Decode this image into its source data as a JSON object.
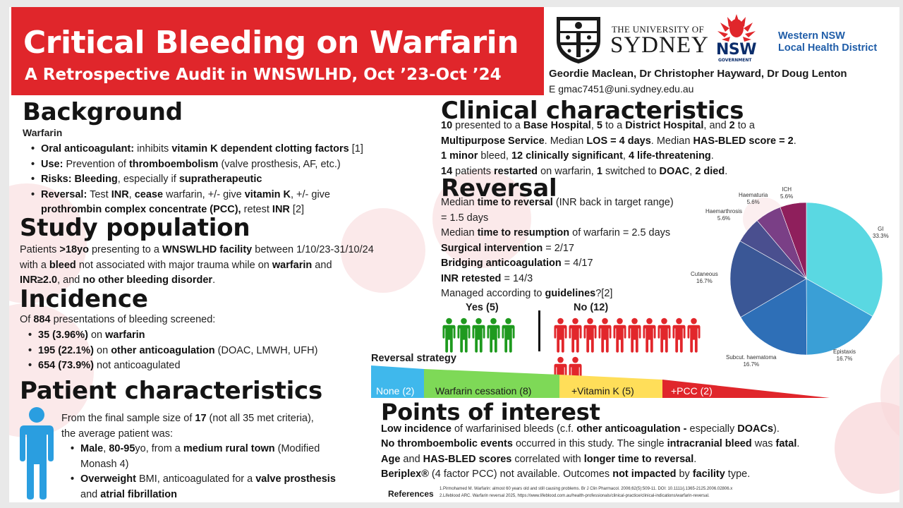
{
  "header": {
    "title": "Critical Bleeding on Warfarin",
    "subtitle": "A Retrospective Audit in WNSWLHD, Oct ’23-Oct ’24",
    "authors": "Geordie Maclean, Dr Christopher Hayward, Dr Doug Lenton",
    "email": "E gmac7451@uni.sydney.edu.au"
  },
  "logos": {
    "usyd_line1": "THE UNIVERSITY OF",
    "usyd_line2": "SYDNEY",
    "nsw_text": "NSW",
    "nsw_sub": "GOVERNMENT",
    "lhd_line1": "Western NSW",
    "lhd_line2": "Local Health District"
  },
  "colors": {
    "banner": "#e0262b",
    "yes": "#1e9a1e",
    "no": "#e2262b",
    "lhd": "#1f5da8"
  },
  "background": {
    "heading": "Background",
    "subheading": "Warfarin",
    "b1": [
      "Oral anticoagulant:",
      " inhibits ",
      "vitamin K dependent clotting factors",
      " [1]"
    ],
    "b2": [
      "Use:",
      " Prevention of ",
      "thromboembolism",
      " (valve prosthesis, AF, etc.)"
    ],
    "b3": [
      "Risks: Bleeding",
      ", especially if ",
      "supratherapeutic"
    ],
    "b4": [
      "Reversal:",
      " Test ",
      "INR",
      ", ",
      "cease",
      " warfarin, +/- give ",
      "vitamin K",
      ", +/- give",
      "prothrombin complex concentrate (PCC),",
      " retest ",
      "INR",
      " [2]"
    ]
  },
  "study": {
    "heading": "Study population",
    "parts": [
      "Patients ",
      ">18yo",
      " presenting to a ",
      "WNSWLHD facility",
      " between 1/10/23-31/10/24",
      "with a ",
      "bleed",
      " not associated with major trauma while on ",
      "warfarin",
      " and",
      "INR≥2.0",
      ", and ",
      "no other bleeding disorder",
      "."
    ]
  },
  "incidence": {
    "heading": "Incidence",
    "intro": [
      "Of ",
      "884",
      " presentations of bleeding screened:"
    ],
    "i1": [
      "35 (3.96%)",
      " on ",
      "warfarin"
    ],
    "i2": [
      "195 (22.1%)",
      " on ",
      "other anticoagulation",
      " (DOAC, LMWH, UFH)"
    ],
    "i3": [
      "654 (73.9%)",
      " not anticoagulated"
    ]
  },
  "patient": {
    "heading": "Patient characteristics",
    "intro": [
      "From the final sample size of ",
      "17",
      " (not all 35 met criteria),",
      "the average patient was:"
    ],
    "p1": [
      "Male",
      ", ",
      "80-95",
      "yo, from a ",
      "medium rural town",
      " (Modified",
      "Monash 4)"
    ],
    "p2": [
      "Overweight",
      " BMI, anticoagulated for a ",
      "valve prosthesis",
      "and ",
      "atrial fibrillation"
    ]
  },
  "clinical": {
    "heading": "Clinical characteristics",
    "l1": [
      "10",
      " presented to a ",
      "Base Hospital",
      ", ",
      "5",
      " to a ",
      "District Hospital",
      ", and ",
      "2",
      " to a"
    ],
    "l2": [
      "Multipurpose Service",
      ". Median ",
      "LOS = 4 days",
      ". Median ",
      "HAS-BLED score = 2",
      "."
    ],
    "l3": [
      "1 minor",
      " bleed, ",
      "12 clinically significant",
      ", ",
      "4 life-threatening",
      "."
    ],
    "l4": [
      "14",
      " patients ",
      "restarted",
      " on warfarin, ",
      "1",
      " switched to ",
      "DOAC",
      ", ",
      "2 died",
      "."
    ]
  },
  "reversal": {
    "heading": "Reversal",
    "r1": [
      "Median ",
      "time to reversal",
      " (INR back in target range)"
    ],
    "r1b": "= 1.5 days",
    "r2": [
      "Median ",
      "time to resumption",
      " of warfarin = 2.5 days"
    ],
    "r3": [
      "Surgical intervention",
      " = 2/17"
    ],
    "r4": [
      "Bridging anticoagulation",
      " = 4/17"
    ],
    "r5": [
      "INR retested",
      " = 14/3"
    ],
    "r6": [
      "Managed according to ",
      "guidelines",
      "?[2]"
    ],
    "yes_label": "Yes (5)",
    "no_label": "No (12)",
    "yes_count": 5,
    "no_count": 12
  },
  "strategy": {
    "heading": "Reversal strategy",
    "steps": [
      {
        "label": "None (2)",
        "color": "#3fb8ec"
      },
      {
        "label": "Warfarin cessation (8)",
        "color": "#7ed957"
      },
      {
        "label": "+Vitamin K (5)",
        "color": "#ffde59"
      },
      {
        "label": "+PCC (2)",
        "color": "#e0262b"
      }
    ]
  },
  "chart_data": {
    "type": "pie",
    "slices": [
      {
        "name": "GI",
        "value": 33.3,
        "label": "33.3%",
        "color": "#5ad8e2"
      },
      {
        "name": "Epistaxis",
        "value": 16.7,
        "label": "16.7%",
        "color": "#3a9fd6"
      },
      {
        "name": "Subcut. haematoma",
        "value": 16.7,
        "label": "16.7%",
        "color": "#2e6fb7"
      },
      {
        "name": "Cutaneous",
        "value": 16.7,
        "label": "16.7%",
        "color": "#3a5796"
      },
      {
        "name": "Haemarthrosis",
        "value": 5.6,
        "label": "5.6%",
        "color": "#4a4f8f"
      },
      {
        "name": "Haematuria",
        "value": 5.6,
        "label": "5.6%",
        "color": "#7a3f86"
      },
      {
        "name": "ICH",
        "value": 5.6,
        "label": "5.6%",
        "color": "#8f1f5c"
      }
    ]
  },
  "poi": {
    "heading": "Points of interest",
    "l1": [
      "Low incidence",
      " of warfarinised bleeds (c.f. ",
      "other anticoagulation -",
      " especially ",
      "DOACs",
      ")."
    ],
    "l2": [
      "No thromboembolic events",
      " occurred in this study. The single ",
      "intracranial bleed",
      " was ",
      "fatal",
      "."
    ],
    "l3": [
      "Age",
      " and ",
      "HAS-BLED scores",
      " correlated with ",
      "longer time to reversal",
      "."
    ],
    "l4": [
      "Beriplex®",
      " (4 factor PCC) not available. Outcomes ",
      "not impacted",
      " by ",
      "facility",
      " type."
    ]
  },
  "references": {
    "label": "References",
    "r1": "1.Pirmohamed M. Warfarin: almost 60 years old and still causing problems. Br J Clin Pharmacol. 2006;62(5):509-11. DOI: 10.1111/j.1365-2125.2006.02806.x",
    "r2": "2.Lifeblood ARC. Warfarin reversal 2025, https://www.lifeblood.com.au/health-professionals/clinical-practice/clinical-indications/warfarin-reversal."
  }
}
